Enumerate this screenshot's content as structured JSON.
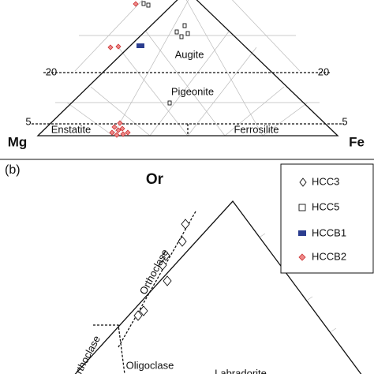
{
  "panel_a": {
    "left_ticks": [
      "20",
      "5"
    ],
    "right_ticks": [
      "20",
      "5"
    ],
    "corners": [
      "Mg",
      "Fe"
    ],
    "fields": [
      "Augite",
      "Pigeonite",
      "Enstatite",
      "Ferrosilite"
    ]
  },
  "panel_b": {
    "label": "(b)",
    "apex": "Or",
    "fields": [
      "Orthoclase",
      "rthoclase",
      "Oligoclase",
      "Labradorite"
    ]
  },
  "legend": [
    "HCC3",
    "HCC5",
    "HCCB1",
    "HCCB2"
  ]
}
